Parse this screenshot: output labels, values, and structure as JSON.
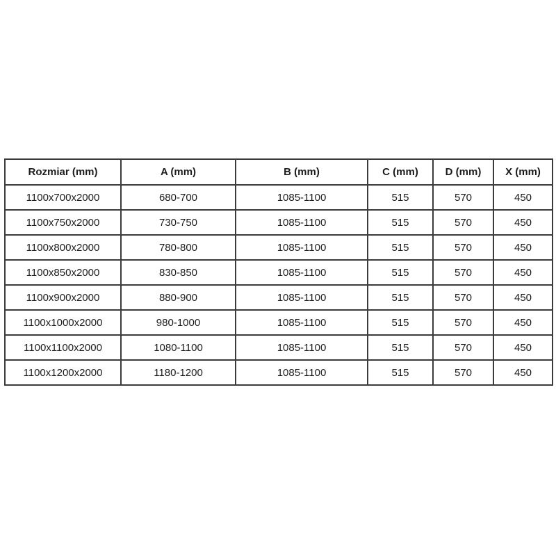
{
  "colors": {
    "background": "#ffffff",
    "border": "#3b3b3b",
    "text": "#1c1c1c"
  },
  "table": {
    "headers": [
      "Rozmiar (mm)",
      "A (mm)",
      "B (mm)",
      "C (mm)",
      "D (mm)",
      "X (mm)"
    ],
    "rows": [
      [
        "1100x700x2000",
        "680-700",
        "1085-1100",
        "515",
        "570",
        "450"
      ],
      [
        "1100x750x2000",
        "730-750",
        "1085-1100",
        "515",
        "570",
        "450"
      ],
      [
        "1100x800x2000",
        "780-800",
        "1085-1100",
        "515",
        "570",
        "450"
      ],
      [
        "1100x850x2000",
        "830-850",
        "1085-1100",
        "515",
        "570",
        "450"
      ],
      [
        "1100x900x2000",
        "880-900",
        "1085-1100",
        "515",
        "570",
        "450"
      ],
      [
        "1100x1000x2000",
        "980-1000",
        "1085-1100",
        "515",
        "570",
        "450"
      ],
      [
        "1100x1100x2000",
        "1080-1100",
        "1085-1100",
        "515",
        "570",
        "450"
      ],
      [
        "1100x1200x2000",
        "1180-1200",
        "1085-1100",
        "515",
        "570",
        "450"
      ]
    ]
  },
  "chart_data": {
    "type": "table",
    "title": "",
    "columns": [
      "Rozmiar (mm)",
      "A (mm)",
      "B (mm)",
      "C (mm)",
      "D (mm)",
      "X (mm)"
    ],
    "rows": [
      [
        "1100x700x2000",
        "680-700",
        "1085-1100",
        515,
        570,
        450
      ],
      [
        "1100x750x2000",
        "730-750",
        "1085-1100",
        515,
        570,
        450
      ],
      [
        "1100x800x2000",
        "780-800",
        "1085-1100",
        515,
        570,
        450
      ],
      [
        "1100x850x2000",
        "830-850",
        "1085-1100",
        515,
        570,
        450
      ],
      [
        "1100x900x2000",
        "880-900",
        "1085-1100",
        515,
        570,
        450
      ],
      [
        "1100x1000x2000",
        "980-1000",
        "1085-1100",
        515,
        570,
        450
      ],
      [
        "1100x1100x2000",
        "1080-1100",
        "1085-1100",
        515,
        570,
        450
      ],
      [
        "1100x1200x2000",
        "1180-1200",
        "1085-1100",
        515,
        570,
        450
      ]
    ],
    "layout_hints": {
      "header_bold": true,
      "cell_alignment": "center",
      "grid": "all-borders"
    }
  }
}
